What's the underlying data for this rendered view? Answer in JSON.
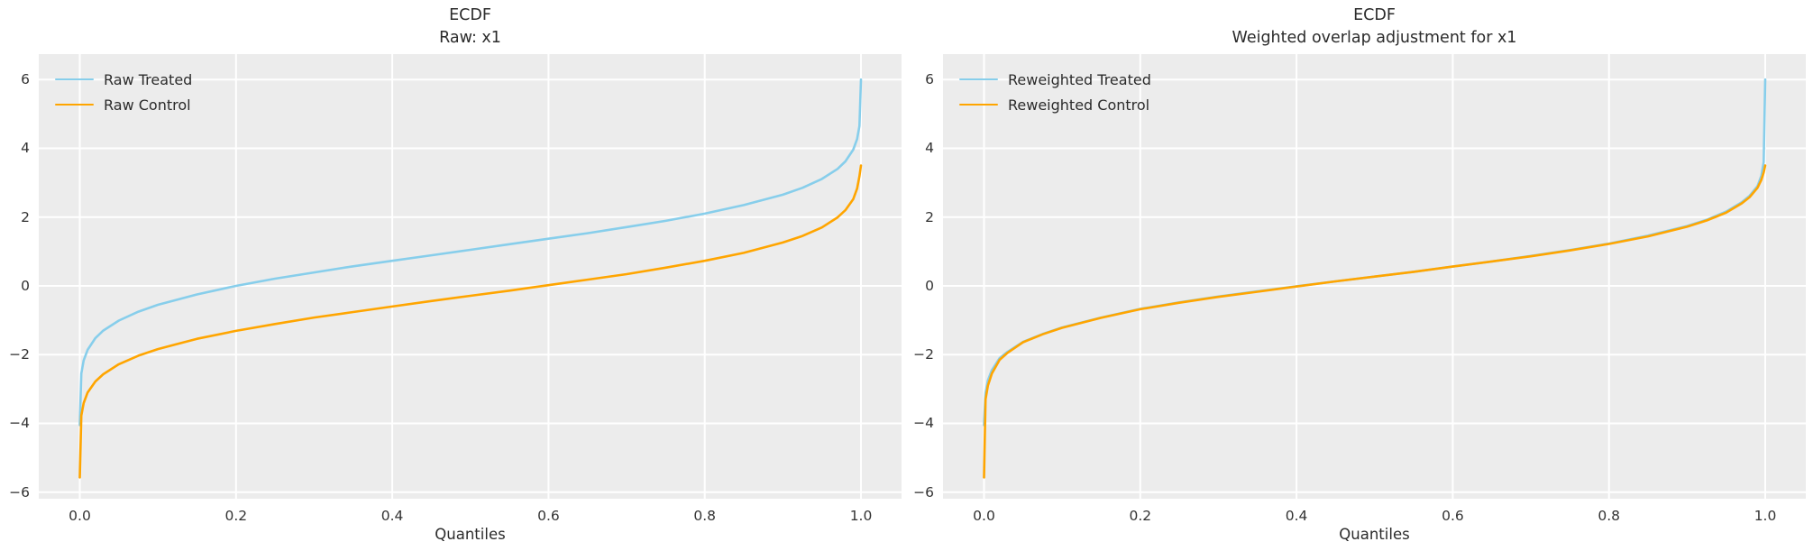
{
  "figure": {
    "background": "#ffffff",
    "panel_background": "#ececec",
    "grid_color": "#ffffff",
    "title_color": "#2b2b2b",
    "tick_color": "#333333",
    "treated_color": "#87CEEB",
    "control_color": "#FFA500"
  },
  "chart_data": [
    {
      "type": "line",
      "title_line1": "ECDF",
      "title_line2": "Raw: x1",
      "xlabel": "Quantiles",
      "grid": true,
      "legend_position": "upper-left",
      "xlim": [
        -0.0525,
        1.0519
      ],
      "ylim": [
        -6.19,
        6.74
      ],
      "xticks": [
        0,
        0.2,
        0.4,
        0.6,
        0.8,
        1.0
      ],
      "xtick_labels": [
        "0.0",
        "0.2",
        "0.4",
        "0.6",
        "0.8",
        "1.0"
      ],
      "yticks": [
        6,
        4,
        2,
        0,
        -2,
        -4,
        -6
      ],
      "ytick_labels": [
        "6",
        "4",
        "2",
        "0",
        "−2",
        "−4",
        "−6"
      ],
      "x": [
        0,
        0.002,
        0.005,
        0.01,
        0.02,
        0.03,
        0.05,
        0.075,
        0.1,
        0.15,
        0.2,
        0.25,
        0.3,
        0.35,
        0.4,
        0.45,
        0.5,
        0.55,
        0.6,
        0.65,
        0.7,
        0.75,
        0.8,
        0.85,
        0.9,
        0.925,
        0.95,
        0.97,
        0.98,
        0.99,
        0.995,
        0.998,
        1
      ],
      "series": [
        {
          "name": "Raw Treated",
          "color": "#87CEEB",
          "values": [
            -4.05,
            -2.55,
            -2.17,
            -1.86,
            -1.52,
            -1.3,
            -1.01,
            -0.75,
            -0.55,
            -0.25,
            0,
            0.21,
            0.39,
            0.57,
            0.73,
            0.89,
            1.05,
            1.21,
            1.37,
            1.53,
            1.71,
            1.89,
            2.1,
            2.35,
            2.65,
            2.85,
            3.11,
            3.4,
            3.62,
            3.96,
            4.27,
            4.65,
            6
          ]
        },
        {
          "name": "Raw Control",
          "color": "#FFA500",
          "values": [
            -5.57,
            -3.77,
            -3.41,
            -3.1,
            -2.78,
            -2.57,
            -2.28,
            -2.03,
            -1.84,
            -1.54,
            -1.31,
            -1.11,
            -0.92,
            -0.76,
            -0.6,
            -0.44,
            -0.29,
            -0.14,
            0.02,
            0.18,
            0.34,
            0.53,
            0.73,
            0.96,
            1.26,
            1.45,
            1.7,
            1.99,
            2.2,
            2.52,
            2.83,
            3.19,
            3.5
          ]
        }
      ]
    },
    {
      "type": "line",
      "title_line1": "ECDF",
      "title_line2": "Weighted overlap adjustment for x1",
      "xlabel": "Quantiles",
      "grid": true,
      "legend_position": "upper-left",
      "xlim": [
        -0.0525,
        1.0519
      ],
      "ylim": [
        -6.19,
        6.74
      ],
      "xticks": [
        0,
        0.2,
        0.4,
        0.6,
        0.8,
        1.0
      ],
      "xtick_labels": [
        "0.0",
        "0.2",
        "0.4",
        "0.6",
        "0.8",
        "1.0"
      ],
      "yticks": [
        6,
        4,
        2,
        0,
        -2,
        -4,
        -6
      ],
      "ytick_labels": [
        "6",
        "4",
        "2",
        "0",
        "−2",
        "−4",
        "−6"
      ],
      "x": [
        0,
        0.002,
        0.005,
        0.01,
        0.02,
        0.03,
        0.05,
        0.075,
        0.1,
        0.15,
        0.2,
        0.25,
        0.3,
        0.35,
        0.4,
        0.45,
        0.5,
        0.55,
        0.6,
        0.65,
        0.7,
        0.75,
        0.8,
        0.85,
        0.9,
        0.925,
        0.95,
        0.97,
        0.98,
        0.99,
        0.995,
        0.998,
        1
      ],
      "series": [
        {
          "name": "Reweighted Treated",
          "color": "#87CEEB",
          "values": [
            -4.05,
            -3.1,
            -2.75,
            -2.45,
            -2.1,
            -1.92,
            -1.63,
            -1.4,
            -1.21,
            -0.92,
            -0.67,
            -0.48,
            -0.31,
            -0.16,
            -0.01,
            0.13,
            0.27,
            0.41,
            0.56,
            0.71,
            0.87,
            1.04,
            1.23,
            1.46,
            1.74,
            1.92,
            2.16,
            2.43,
            2.62,
            2.9,
            3.2,
            3.6,
            6
          ]
        },
        {
          "name": "Reweighted Control",
          "color": "#FFA500",
          "values": [
            -5.57,
            -3.3,
            -2.9,
            -2.55,
            -2.15,
            -1.95,
            -1.64,
            -1.41,
            -1.22,
            -0.93,
            -0.68,
            -0.49,
            -0.32,
            -0.17,
            -0.02,
            0.13,
            0.27,
            0.41,
            0.56,
            0.71,
            0.86,
            1.03,
            1.22,
            1.44,
            1.72,
            1.9,
            2.13,
            2.4,
            2.58,
            2.85,
            3.08,
            3.3,
            3.5
          ]
        }
      ]
    }
  ]
}
